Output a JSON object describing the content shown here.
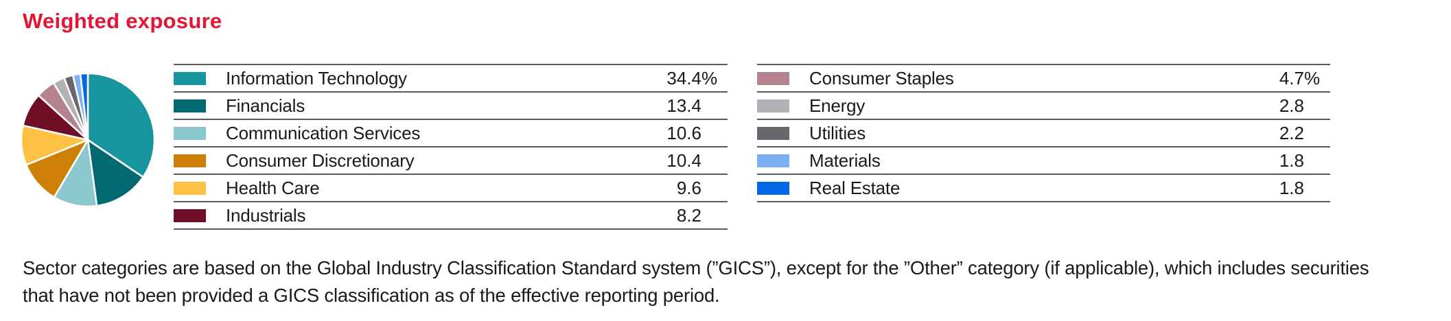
{
  "title": {
    "text": "Weighted exposure",
    "color": "#e61432"
  },
  "chart_data": {
    "type": "pie",
    "title": "Weighted exposure",
    "categories": [
      "Information Technology",
      "Financials",
      "Communication Services",
      "Consumer Discretionary",
      "Health Care",
      "Industrials",
      "Consumer Staples",
      "Energy",
      "Utilities",
      "Materials",
      "Real Estate"
    ],
    "values": [
      34.4,
      13.4,
      10.6,
      10.4,
      9.6,
      8.2,
      4.7,
      2.8,
      2.2,
      1.8,
      1.8
    ],
    "colors": [
      "#17959f",
      "#006972",
      "#8ac8cd",
      "#cd8005",
      "#ffc144",
      "#700e27",
      "#b5838f",
      "#b2b1b5",
      "#69676b",
      "#7db0f0",
      "#0268e4"
    ],
    "unit": "%",
    "start_angle": "12 o'clock",
    "direction": "clockwise",
    "slice_gap_color": "#ffffff",
    "legend_position": "right as two ruled tables"
  },
  "legend_left": {
    "rows": [
      {
        "label": "Information Technology",
        "value": "34.4",
        "unit": "%",
        "color": "#17959f"
      },
      {
        "label": "Financials",
        "value": "13.4",
        "unit": "",
        "color": "#006972"
      },
      {
        "label": "Communication Services",
        "value": "10.6",
        "unit": "",
        "color": "#8ac8cd"
      },
      {
        "label": "Consumer Discretionary",
        "value": "10.4",
        "unit": "",
        "color": "#cd8005"
      },
      {
        "label": "Health Care",
        "value": "9.6",
        "unit": "",
        "color": "#ffc144"
      },
      {
        "label": "Industrials",
        "value": "8.2",
        "unit": "",
        "color": "#700e27"
      }
    ]
  },
  "legend_right": {
    "rows": [
      {
        "label": "Consumer Staples",
        "value": "4.7",
        "unit": "%",
        "color": "#b5838f"
      },
      {
        "label": "Energy",
        "value": "2.8",
        "unit": "",
        "color": "#b2b1b5"
      },
      {
        "label": "Utilities",
        "value": "2.2",
        "unit": "",
        "color": "#69676b"
      },
      {
        "label": "Materials",
        "value": "1.8",
        "unit": "",
        "color": "#7db0f0"
      },
      {
        "label": "Real Estate",
        "value": "1.8",
        "unit": "",
        "color": "#0268e4"
      }
    ]
  },
  "footnote": {
    "lines": [
      "Sector categories are based on the Global Industry Classification Standard system (”GICS”), except for the ”Other” category (if applicable), which includes securities",
      "that have not been provided a GICS classification as of the effective reporting period."
    ]
  }
}
